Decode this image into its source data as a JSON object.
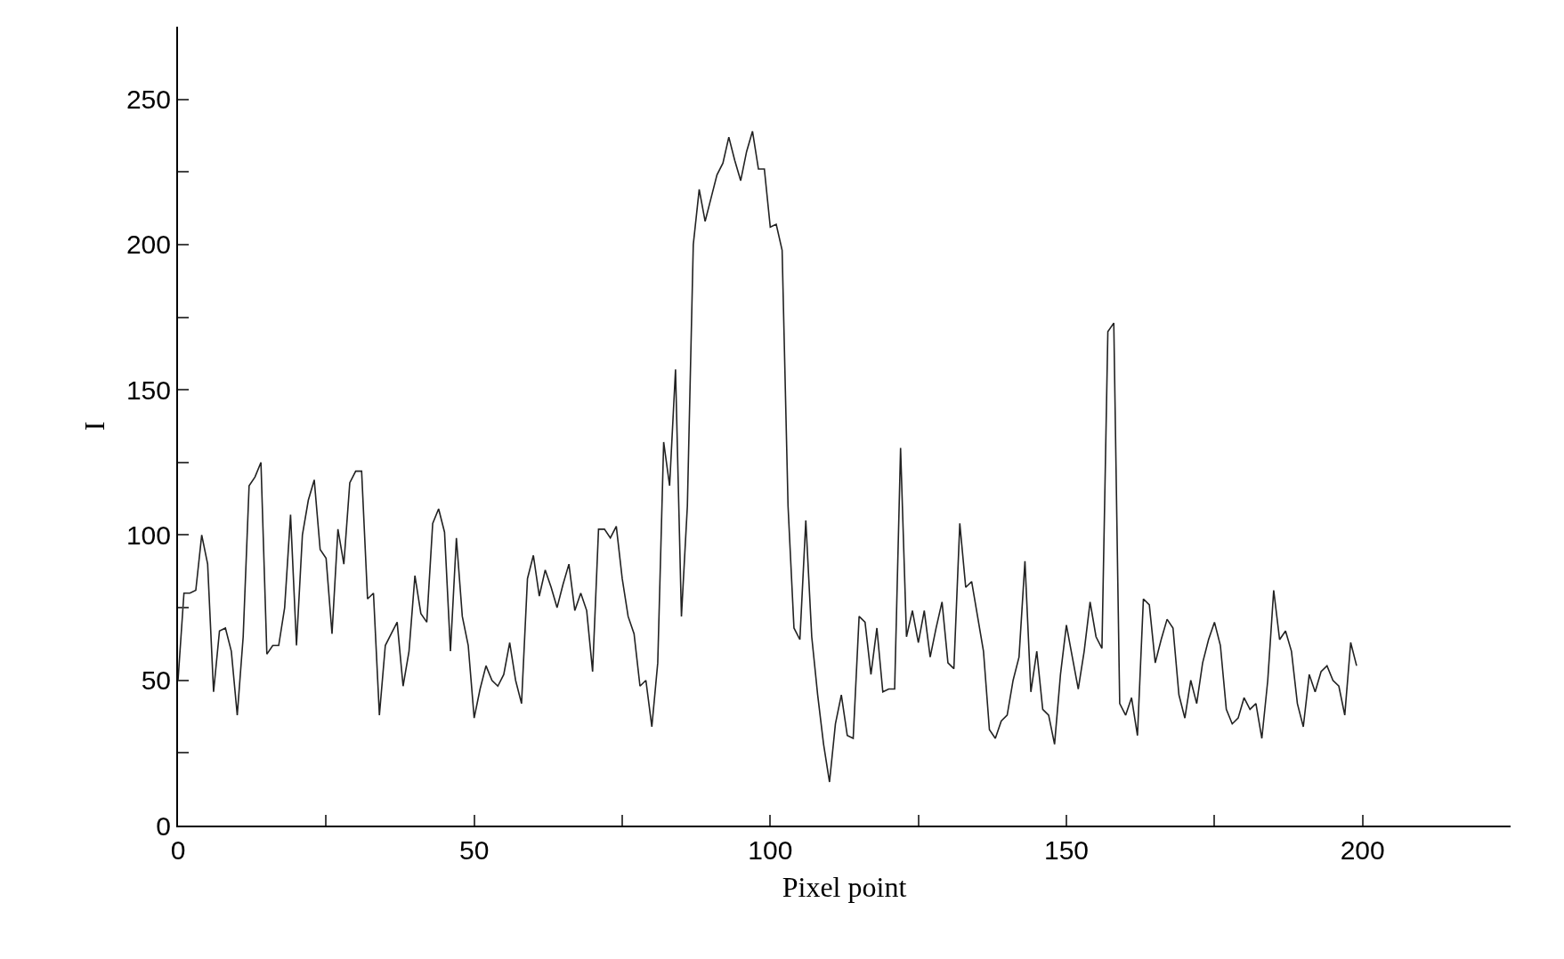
{
  "chart_data": {
    "type": "line",
    "xlabel": "Pixel point",
    "ylabel": "I",
    "x": [
      0,
      1,
      2,
      3,
      4,
      5,
      6,
      7,
      8,
      9,
      10,
      11,
      12,
      13,
      14,
      15,
      16,
      17,
      18,
      19,
      20,
      21,
      22,
      23,
      24,
      25,
      26,
      27,
      28,
      29,
      30,
      31,
      32,
      33,
      34,
      35,
      36,
      37,
      38,
      39,
      40,
      41,
      42,
      43,
      44,
      45,
      46,
      47,
      48,
      49,
      50,
      51,
      52,
      53,
      54,
      55,
      56,
      57,
      58,
      59,
      60,
      61,
      62,
      63,
      64,
      65,
      66,
      67,
      68,
      69,
      70,
      71,
      72,
      73,
      74,
      75,
      76,
      77,
      78,
      79,
      80,
      81,
      82,
      83,
      84,
      85,
      86,
      87,
      88,
      89,
      90,
      91,
      92,
      93,
      94,
      95,
      96,
      97,
      98,
      99,
      100,
      101,
      102,
      103,
      104,
      105,
      106,
      107,
      108,
      109,
      110,
      111,
      112,
      113,
      114,
      115,
      116,
      117,
      118,
      119,
      120,
      121,
      122,
      123,
      124,
      125,
      126,
      127,
      128,
      129,
      130,
      131,
      132,
      133,
      134,
      135,
      136,
      137,
      138,
      139,
      140,
      141,
      142,
      143,
      144,
      145,
      146,
      147,
      148,
      149,
      150,
      151,
      152,
      153,
      154,
      155,
      156,
      157,
      158,
      159,
      160,
      161,
      162,
      163,
      164,
      165,
      166,
      167,
      168,
      169,
      170,
      171,
      172,
      173,
      174,
      175,
      176,
      177,
      178,
      179,
      180,
      181,
      182,
      183,
      184,
      185,
      186,
      187,
      188,
      189,
      190,
      191,
      192,
      193,
      194,
      195,
      196,
      197,
      198,
      199
    ],
    "series": [
      {
        "color": "#222222",
        "values": [
          50,
          80,
          80,
          81,
          100,
          90,
          46,
          67,
          68,
          60,
          38,
          65,
          117,
          120,
          125,
          59,
          62,
          62,
          75,
          107,
          62,
          100,
          112,
          119,
          95,
          92,
          66,
          102,
          90,
          118,
          122,
          122,
          78,
          80,
          38,
          62,
          66,
          70,
          48,
          60,
          86,
          73,
          70,
          104,
          109,
          101,
          60,
          99,
          72,
          62,
          37,
          47,
          55,
          50,
          48,
          52,
          63,
          50,
          42,
          85,
          93,
          79,
          88,
          82,
          75,
          83,
          90,
          74,
          80,
          74,
          53,
          102,
          102,
          99,
          103,
          85,
          72,
          66,
          48,
          50,
          34,
          56,
          132,
          117,
          157,
          72,
          110,
          200,
          219,
          208,
          216,
          224,
          228,
          237,
          229,
          222,
          232,
          239,
          226,
          226,
          206,
          207,
          198,
          110,
          68,
          64,
          105,
          65,
          45,
          28,
          15,
          35,
          45,
          31,
          30,
          72,
          70,
          52,
          68,
          46,
          47,
          47,
          130,
          65,
          74,
          63,
          74,
          58,
          68,
          77,
          56,
          54,
          104,
          82,
          84,
          72,
          60,
          33,
          30,
          36,
          38,
          50,
          58,
          91,
          46,
          60,
          40,
          38,
          28,
          52,
          69,
          58,
          47,
          60,
          77,
          65,
          61,
          170,
          173,
          42,
          38,
          44,
          31,
          78,
          76,
          56,
          64,
          71,
          68,
          45,
          37,
          50,
          42,
          56,
          64,
          70,
          62,
          40,
          35,
          37,
          44,
          40,
          42,
          30,
          50,
          81,
          64,
          67,
          60,
          42,
          34,
          52,
          46,
          53,
          55,
          50,
          48,
          38,
          63,
          55
        ]
      }
    ],
    "xlim": [
      0,
      225
    ],
    "xticks": [
      0,
      {
        "value": 25,
        "label": null
      },
      50,
      {
        "value": 75,
        "label": null
      },
      100,
      {
        "value": 125,
        "label": null
      },
      150,
      {
        "value": 175,
        "label": null
      },
      200
    ],
    "ylim": [
      0,
      275
    ],
    "yticks": [
      0,
      {
        "value": 25,
        "label": null
      },
      50,
      {
        "value": 75,
        "label": null
      },
      100,
      {
        "value": 125,
        "label": null
      },
      150,
      {
        "value": 175,
        "label": null
      },
      200,
      {
        "value": 225,
        "label": null
      },
      250
    ],
    "marker": "none",
    "line_style": "solid"
  }
}
